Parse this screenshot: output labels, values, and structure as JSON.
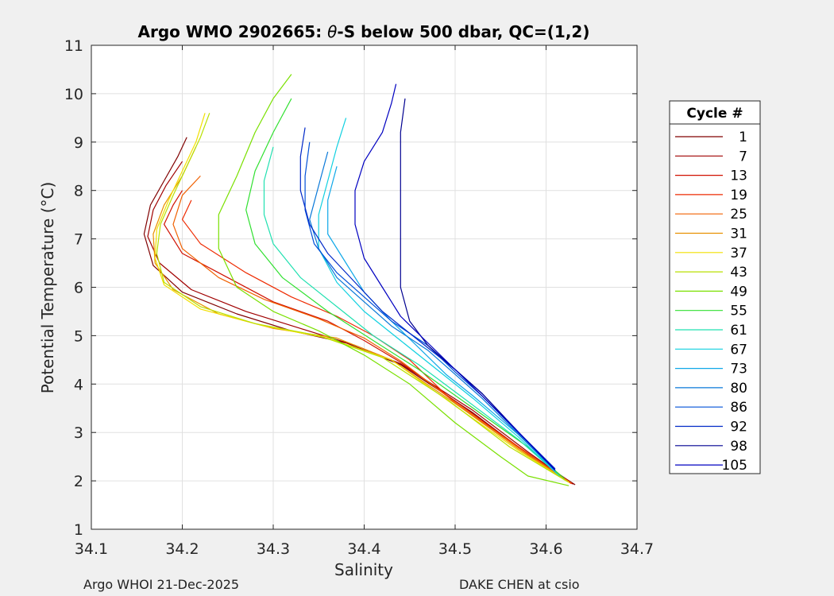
{
  "chart_data": {
    "type": "line",
    "title": "Argo WMO 2902665: θ-S below 500 dbar,  QC=(1,2)",
    "title_prefix": "Argo WMO 2902665: ",
    "title_symbol": "θ",
    "title_suffix": "-S below 500 dbar,  QC=(1,2)",
    "xlabel": "Salinity",
    "ylabel": "Potential Temperature (°C)",
    "ylabel_main": "Potential Temperature (",
    "ylabel_unit": "°C)",
    "xlim": [
      34.1,
      34.7
    ],
    "ylim": [
      1,
      11
    ],
    "xticks": [
      34.1,
      34.2,
      34.3,
      34.4,
      34.5,
      34.6,
      34.7
    ],
    "xtick_labels": [
      "34.1",
      "34.2",
      "34.3",
      "34.4",
      "34.5",
      "34.6",
      "34.7"
    ],
    "yticks": [
      1,
      2,
      3,
      4,
      5,
      6,
      7,
      8,
      9,
      10,
      11
    ],
    "ytick_labels": [
      "1",
      "2",
      "3",
      "4",
      "5",
      "6",
      "7",
      "8",
      "9",
      "10",
      "11"
    ],
    "grid": true,
    "legend": {
      "title": "Cycle #",
      "placement": "outside-right",
      "entries": [
        {
          "label": "1",
          "color": "#800000"
        },
        {
          "label": "7",
          "color": "#a00000"
        },
        {
          "label": "13",
          "color": "#d01000"
        },
        {
          "label": "19",
          "color": "#ee2a00"
        },
        {
          "label": "25",
          "color": "#f06000"
        },
        {
          "label": "31",
          "color": "#e89000"
        },
        {
          "label": "37",
          "color": "#f2e000"
        },
        {
          "label": "43",
          "color": "#b8e000"
        },
        {
          "label": "49",
          "color": "#7ae000"
        },
        {
          "label": "55",
          "color": "#30e030"
        },
        {
          "label": "61",
          "color": "#20e0b0"
        },
        {
          "label": "67",
          "color": "#10d0e0"
        },
        {
          "label": "73",
          "color": "#10a8e8"
        },
        {
          "label": "80",
          "color": "#0878d8"
        },
        {
          "label": "86",
          "color": "#0050d8"
        },
        {
          "label": "92",
          "color": "#0028c8"
        },
        {
          "label": "98",
          "color": "#000090"
        },
        {
          "label": "105",
          "color": "#0000c0"
        }
      ]
    },
    "series": [
      {
        "name": "1",
        "color": "#800000",
        "points": [
          [
            34.632,
            1.92
          ],
          [
            34.58,
            2.55
          ],
          [
            34.52,
            3.4
          ],
          [
            34.44,
            4.4
          ],
          [
            34.38,
            4.85
          ],
          [
            34.32,
            5.1
          ],
          [
            34.26,
            5.45
          ],
          [
            34.2,
            5.9
          ],
          [
            34.168,
            6.45
          ],
          [
            34.158,
            7.1
          ],
          [
            34.165,
            7.7
          ],
          [
            34.18,
            8.2
          ],
          [
            34.195,
            8.7
          ],
          [
            34.205,
            9.1
          ]
        ]
      },
      {
        "name": "7",
        "color": "#a00000",
        "points": [
          [
            34.63,
            1.93
          ],
          [
            34.58,
            2.6
          ],
          [
            34.52,
            3.45
          ],
          [
            34.44,
            4.42
          ],
          [
            34.39,
            4.8
          ],
          [
            34.33,
            5.15
          ],
          [
            34.27,
            5.5
          ],
          [
            34.21,
            5.95
          ],
          [
            34.175,
            6.5
          ],
          [
            34.162,
            7.05
          ],
          [
            34.168,
            7.6
          ],
          [
            34.182,
            8.1
          ],
          [
            34.2,
            8.6
          ]
        ]
      },
      {
        "name": "13",
        "color": "#d01000",
        "points": [
          [
            34.628,
            1.94
          ],
          [
            34.57,
            2.7
          ],
          [
            34.5,
            3.65
          ],
          [
            34.44,
            4.45
          ],
          [
            34.4,
            4.9
          ],
          [
            34.36,
            5.3
          ],
          [
            34.3,
            5.7
          ],
          [
            34.25,
            6.2
          ],
          [
            34.2,
            6.7
          ],
          [
            34.18,
            7.3
          ],
          [
            34.19,
            7.7
          ],
          [
            34.2,
            8.0
          ]
        ]
      },
      {
        "name": "19",
        "color": "#ee2a00",
        "points": [
          [
            34.628,
            1.94
          ],
          [
            34.57,
            2.7
          ],
          [
            34.5,
            3.6
          ],
          [
            34.45,
            4.5
          ],
          [
            34.41,
            5.0
          ],
          [
            34.37,
            5.4
          ],
          [
            34.32,
            5.8
          ],
          [
            34.27,
            6.3
          ],
          [
            34.22,
            6.9
          ],
          [
            34.2,
            7.4
          ],
          [
            34.21,
            7.8
          ]
        ]
      },
      {
        "name": "25",
        "color": "#f06000",
        "points": [
          [
            34.628,
            1.95
          ],
          [
            34.57,
            2.68
          ],
          [
            34.5,
            3.62
          ],
          [
            34.44,
            4.48
          ],
          [
            34.4,
            4.95
          ],
          [
            34.35,
            5.35
          ],
          [
            34.29,
            5.75
          ],
          [
            34.24,
            6.2
          ],
          [
            34.2,
            6.8
          ],
          [
            34.19,
            7.3
          ],
          [
            34.2,
            7.9
          ],
          [
            34.22,
            8.3
          ]
        ]
      },
      {
        "name": "31",
        "color": "#e89000",
        "points": [
          [
            34.626,
            1.96
          ],
          [
            34.57,
            2.65
          ],
          [
            34.5,
            3.6
          ],
          [
            34.43,
            4.5
          ],
          [
            34.37,
            4.95
          ],
          [
            34.3,
            5.15
          ],
          [
            34.24,
            5.45
          ],
          [
            34.19,
            5.95
          ],
          [
            34.17,
            6.5
          ],
          [
            34.168,
            7.1
          ],
          [
            34.18,
            7.7
          ],
          [
            34.2,
            8.3
          ],
          [
            34.215,
            8.9
          ]
        ]
      },
      {
        "name": "37",
        "color": "#f2e000",
        "points": [
          [
            34.625,
            1.97
          ],
          [
            34.57,
            2.62
          ],
          [
            34.5,
            3.55
          ],
          [
            34.43,
            4.5
          ],
          [
            34.36,
            4.95
          ],
          [
            34.29,
            5.2
          ],
          [
            34.22,
            5.55
          ],
          [
            34.18,
            6.05
          ],
          [
            34.17,
            6.6
          ],
          [
            34.172,
            7.2
          ],
          [
            34.185,
            7.8
          ],
          [
            34.2,
            8.4
          ],
          [
            34.215,
            9.0
          ],
          [
            34.225,
            9.6
          ]
        ]
      },
      {
        "name": "43",
        "color": "#b8e000",
        "points": [
          [
            34.624,
            1.98
          ],
          [
            34.56,
            2.7
          ],
          [
            34.49,
            3.7
          ],
          [
            34.42,
            4.55
          ],
          [
            34.35,
            5.0
          ],
          [
            34.28,
            5.25
          ],
          [
            34.22,
            5.6
          ],
          [
            34.18,
            6.1
          ],
          [
            34.172,
            6.7
          ],
          [
            34.176,
            7.3
          ],
          [
            34.19,
            7.9
          ],
          [
            34.205,
            8.5
          ],
          [
            34.22,
            9.1
          ],
          [
            34.23,
            9.6
          ]
        ]
      },
      {
        "name": "49",
        "color": "#7ae000",
        "points": [
          [
            34.625,
            1.9
          ],
          [
            34.58,
            2.1
          ],
          [
            34.55,
            2.5
          ],
          [
            34.5,
            3.2
          ],
          [
            34.45,
            4.0
          ],
          [
            34.4,
            4.6
          ],
          [
            34.35,
            5.1
          ],
          [
            34.3,
            5.5
          ],
          [
            34.26,
            6.0
          ],
          [
            34.24,
            6.8
          ],
          [
            34.24,
            7.5
          ],
          [
            34.26,
            8.3
          ],
          [
            34.28,
            9.2
          ],
          [
            34.3,
            9.9
          ],
          [
            34.32,
            10.4
          ]
        ]
      },
      {
        "name": "55",
        "color": "#30e030",
        "points": [
          [
            34.62,
            2.05
          ],
          [
            34.58,
            2.7
          ],
          [
            34.52,
            3.5
          ],
          [
            34.46,
            4.3
          ],
          [
            34.41,
            4.9
          ],
          [
            34.36,
            5.5
          ],
          [
            34.31,
            6.2
          ],
          [
            34.28,
            6.9
          ],
          [
            34.27,
            7.6
          ],
          [
            34.28,
            8.4
          ],
          [
            34.3,
            9.2
          ],
          [
            34.32,
            9.9
          ]
        ]
      },
      {
        "name": "61",
        "color": "#20e0b0",
        "points": [
          [
            34.615,
            2.1
          ],
          [
            34.57,
            2.85
          ],
          [
            34.51,
            3.7
          ],
          [
            34.46,
            4.4
          ],
          [
            34.41,
            5.0
          ],
          [
            34.37,
            5.6
          ],
          [
            34.33,
            6.2
          ],
          [
            34.3,
            6.9
          ],
          [
            34.29,
            7.5
          ],
          [
            34.29,
            8.2
          ],
          [
            34.3,
            8.9
          ]
        ]
      },
      {
        "name": "67",
        "color": "#10d0e0",
        "points": [
          [
            34.612,
            2.15
          ],
          [
            34.57,
            2.9
          ],
          [
            34.52,
            3.7
          ],
          [
            34.48,
            4.3
          ],
          [
            34.44,
            4.9
          ],
          [
            34.4,
            5.5
          ],
          [
            34.37,
            6.1
          ],
          [
            34.35,
            6.8
          ],
          [
            34.35,
            7.5
          ],
          [
            34.36,
            8.2
          ],
          [
            34.37,
            8.9
          ],
          [
            34.38,
            9.5
          ]
        ]
      },
      {
        "name": "73",
        "color": "#10a8e8",
        "points": [
          [
            34.61,
            2.2
          ],
          [
            34.57,
            2.95
          ],
          [
            34.52,
            3.75
          ],
          [
            34.49,
            4.2
          ],
          [
            34.46,
            4.75
          ],
          [
            34.43,
            5.3
          ],
          [
            34.4,
            5.9
          ],
          [
            34.38,
            6.5
          ],
          [
            34.36,
            7.1
          ],
          [
            34.36,
            7.8
          ],
          [
            34.37,
            8.5
          ]
        ]
      },
      {
        "name": "80",
        "color": "#0878d8",
        "points": [
          [
            34.61,
            2.22
          ],
          [
            34.57,
            2.95
          ],
          [
            34.53,
            3.7
          ],
          [
            34.5,
            4.2
          ],
          [
            34.47,
            4.7
          ],
          [
            34.43,
            5.2
          ],
          [
            34.4,
            5.7
          ],
          [
            34.37,
            6.2
          ],
          [
            34.35,
            6.8
          ],
          [
            34.34,
            7.4
          ],
          [
            34.35,
            8.1
          ],
          [
            34.36,
            8.8
          ]
        ]
      },
      {
        "name": "86",
        "color": "#0050d8",
        "points": [
          [
            34.61,
            2.25
          ],
          [
            34.57,
            2.98
          ],
          [
            34.53,
            3.75
          ],
          [
            34.5,
            4.25
          ],
          [
            34.47,
            4.8
          ],
          [
            34.43,
            5.3
          ],
          [
            34.4,
            5.8
          ],
          [
            34.37,
            6.3
          ],
          [
            34.345,
            6.9
          ],
          [
            34.335,
            7.6
          ],
          [
            34.335,
            8.3
          ],
          [
            34.34,
            9.0
          ]
        ]
      },
      {
        "name": "92",
        "color": "#0028c8",
        "points": [
          [
            34.61,
            2.25
          ],
          [
            34.57,
            3.0
          ],
          [
            34.53,
            3.8
          ],
          [
            34.5,
            4.3
          ],
          [
            34.46,
            4.9
          ],
          [
            34.42,
            5.5
          ],
          [
            34.39,
            6.1
          ],
          [
            34.36,
            6.7
          ],
          [
            34.34,
            7.3
          ],
          [
            34.33,
            8.0
          ],
          [
            34.33,
            8.7
          ],
          [
            34.335,
            9.3
          ]
        ]
      },
      {
        "name": "98",
        "color": "#000090",
        "points": [
          [
            34.61,
            2.22
          ],
          [
            34.57,
            3.0
          ],
          [
            34.53,
            3.8
          ],
          [
            34.5,
            4.3
          ],
          [
            34.47,
            4.8
          ],
          [
            34.45,
            5.3
          ],
          [
            34.44,
            6.0
          ],
          [
            34.44,
            6.8
          ],
          [
            34.44,
            7.6
          ],
          [
            34.44,
            8.4
          ],
          [
            34.44,
            9.2
          ],
          [
            34.445,
            9.9
          ]
        ]
      },
      {
        "name": "105",
        "color": "#0000c0",
        "points": [
          [
            34.61,
            2.22
          ],
          [
            34.57,
            3.0
          ],
          [
            34.53,
            3.75
          ],
          [
            34.5,
            4.3
          ],
          [
            34.47,
            4.85
          ],
          [
            34.44,
            5.4
          ],
          [
            34.42,
            6.0
          ],
          [
            34.4,
            6.6
          ],
          [
            34.39,
            7.3
          ],
          [
            34.39,
            8.0
          ],
          [
            34.4,
            8.6
          ],
          [
            34.42,
            9.2
          ],
          [
            34.43,
            9.8
          ],
          [
            34.435,
            10.2
          ]
        ]
      }
    ]
  },
  "footer": {
    "left": "Argo WHOI 21-Dec-2025",
    "right": "DAKE CHEN at csio"
  }
}
